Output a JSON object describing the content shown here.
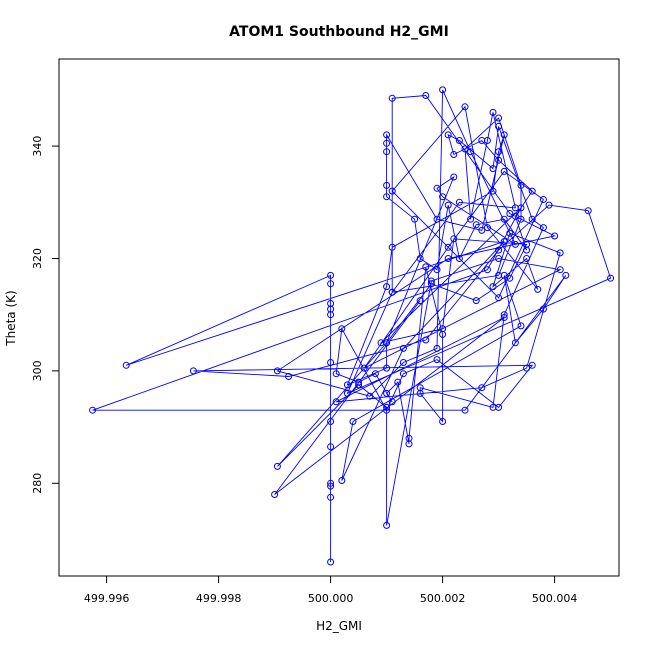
{
  "chart_data": {
    "type": "line",
    "title": "ATOM1 Southbound H2_GMI",
    "xlabel": "H2_GMI",
    "ylabel": "Theta (K)",
    "xlim": [
      499.99515,
      500.00515
    ],
    "ylim": [
      263.5,
      355.5
    ],
    "x_ticks": [
      "499.996",
      "499.998",
      "500.000",
      "500.002",
      "500.004"
    ],
    "x_tick_values": [
      499.996,
      499.998,
      500.0,
      500.002,
      500.004
    ],
    "y_ticks": [
      "280",
      "300",
      "320",
      "340"
    ],
    "y_tick_values": [
      280,
      300,
      320,
      340
    ],
    "grid": false,
    "series": [
      {
        "color": "#0000ff",
        "marker": "open-circle",
        "points": [
          [
            500.0,
            266.0
          ],
          [
            500.0,
            277.5
          ],
          [
            500.0,
            279.5
          ],
          [
            500.0,
            280.0
          ],
          [
            500.0,
            286.5
          ],
          [
            500.0,
            291.0
          ],
          [
            500.0,
            301.5
          ],
          [
            500.0,
            310.0
          ],
          [
            500.0,
            311.0
          ],
          [
            500.0,
            312.0
          ],
          [
            500.0,
            315.5
          ],
          [
            500.0,
            317.0
          ],
          [
            499.99635,
            301.0
          ],
          [
            500.0031,
            323.0
          ],
          [
            500.0013,
            304.0
          ],
          [
            500.0002,
            280.5
          ],
          [
            500.0004,
            291.0
          ],
          [
            500.0034,
            308.0
          ],
          [
            500.0031,
            317.0
          ],
          [
            500.0033,
            305.0
          ],
          [
            500.0038,
            311.0
          ],
          [
            500.0042,
            317.0
          ],
          [
            500.0024,
            293.0
          ],
          [
            499.99575,
            293.0
          ],
          [
            500.0028,
            318.0
          ],
          [
            500.0034,
            329.0
          ],
          [
            500.0009,
            305.0
          ],
          [
            500.002,
            307.5
          ],
          [
            500.0022,
            323.5
          ],
          [
            500.0035,
            322.5
          ],
          [
            500.0032,
            316.5
          ],
          [
            500.0026,
            312.5
          ],
          [
            500.0018,
            315.5
          ],
          [
            500.001,
            305.0
          ],
          [
            500.001,
            300.5
          ],
          [
            500.0003,
            297.5
          ],
          [
            500.001,
            315.0
          ],
          [
            500.0011,
            322.0
          ],
          [
            500.0029,
            332.0
          ],
          [
            500.003,
            339.0
          ],
          [
            500.0031,
            342.0
          ],
          [
            500.0027,
            325.0
          ],
          [
            500.0019,
            327.0
          ],
          [
            500.001,
            342.0
          ],
          [
            500.001,
            340.5
          ],
          [
            500.001,
            339.0
          ],
          [
            500.001,
            333.0
          ],
          [
            500.001,
            331.0
          ],
          [
            500.0015,
            327.0
          ],
          [
            500.0016,
            320.0
          ],
          [
            500.0019,
            318.0
          ],
          [
            500.0021,
            329.5
          ],
          [
            500.0023,
            320.0
          ],
          [
            500.0026,
            326.0
          ],
          [
            500.0031,
            327.0
          ],
          [
            500.0035,
            321.5
          ],
          [
            500.0033,
            327.5
          ],
          [
            500.0036,
            332.0
          ],
          [
            500.003,
            337.5
          ],
          [
            500.0027,
            341.0
          ],
          [
            500.0022,
            338.5
          ],
          [
            500.0021,
            342.0
          ],
          [
            500.0023,
            341.0
          ],
          [
            500.0029,
            336.0
          ],
          [
            500.003,
            343.5
          ],
          [
            500.0036,
            327.0
          ],
          [
            500.0038,
            325.5
          ],
          [
            500.0031,
            310.0
          ],
          [
            500.0029,
            293.5
          ],
          [
            500.0016,
            297.0
          ],
          [
            500.0016,
            296.0
          ],
          [
            500.002,
            291.0
          ],
          [
            500.002,
            306.5
          ],
          [
            500.0017,
            318.5
          ],
          [
            500.0014,
            288.0
          ],
          [
            500.0014,
            287.0
          ],
          [
            500.0012,
            298.0
          ],
          [
            500.001,
            296.0
          ],
          [
            500.0011,
            294.5
          ],
          [
            500.0008,
            299.5
          ],
          [
            500.0005,
            298.0
          ],
          [
            500.0001,
            299.5
          ],
          [
            500.0002,
            307.5
          ],
          [
            500.001,
            293.0
          ],
          [
            500.0013,
            299.5
          ],
          [
            500.0019,
            302.0
          ],
          [
            500.003,
            293.5
          ],
          [
            500.0036,
            301.0
          ],
          [
            499.99755,
            300.0
          ],
          [
            499.99925,
            299.0
          ],
          [
            500.0017,
            305.5
          ],
          [
            500.003,
            321.5
          ],
          [
            500.0039,
            329.5
          ],
          [
            500.0046,
            328.5
          ],
          [
            500.005,
            316.5
          ],
          [
            500.0003,
            296.0
          ],
          [
            500.0011,
            314.0
          ],
          [
            500.0023,
            330.0
          ],
          [
            500.0033,
            329.0
          ],
          [
            500.0029,
            346.0
          ],
          [
            500.0028,
            341.0
          ],
          [
            500.0025,
            327.0
          ],
          [
            500.0024,
            339.5
          ],
          [
            500.003,
            345.0
          ],
          [
            500.0034,
            333.0
          ],
          [
            500.0034,
            327.0
          ],
          [
            500.003,
            317.0
          ],
          [
            500.0011,
            314.0
          ],
          [
            500.0011,
            348.5
          ],
          [
            500.0017,
            349.0
          ],
          [
            500.0032,
            328.0
          ],
          [
            500.004,
            324.0
          ],
          [
            500.0021,
            320.0
          ],
          [
            499.99905,
            300.0
          ],
          [
            500.0007,
            295.5
          ],
          [
            500.0013,
            301.5
          ],
          [
            500.0019,
            304.0
          ],
          [
            500.002,
            350.0
          ],
          [
            500.0025,
            339.0
          ],
          [
            500.0033,
            322.5
          ],
          [
            500.002,
            331.0
          ],
          [
            500.0019,
            332.5
          ],
          [
            500.0022,
            334.5
          ],
          [
            500.001,
            305.0
          ],
          [
            499.99905,
            283.0
          ],
          [
            500.0005,
            297.5
          ],
          [
            500.001,
            293.5
          ],
          [
            500.001,
            272.5
          ],
          [
            500.0018,
            316.0
          ],
          [
            500.003,
            320.0
          ],
          [
            500.0041,
            318.0
          ],
          [
            500.0006,
            300.5
          ],
          [
            500.0021,
            322.0
          ],
          [
            500.0031,
            335.5
          ],
          [
            500.0038,
            330.5
          ],
          [
            500.003,
            313.0
          ],
          [
            500.0011,
            332.0
          ],
          [
            500.0024,
            347.0
          ],
          [
            500.0028,
            325.5
          ],
          [
            500.0037,
            314.5
          ],
          [
            500.0035,
            320.0
          ],
          [
            500.0029,
            315.0
          ],
          [
            500.0032,
            324.5
          ],
          [
            500.0041,
            321.0
          ],
          [
            500.0035,
            300.5
          ],
          [
            500.0027,
            297.0
          ],
          [
            500.0001,
            294.5
          ],
          [
            500.0031,
            309.5
          ],
          [
            499.999,
            278.0
          ],
          [
            500.0016,
            312.5
          ]
        ]
      }
    ]
  }
}
